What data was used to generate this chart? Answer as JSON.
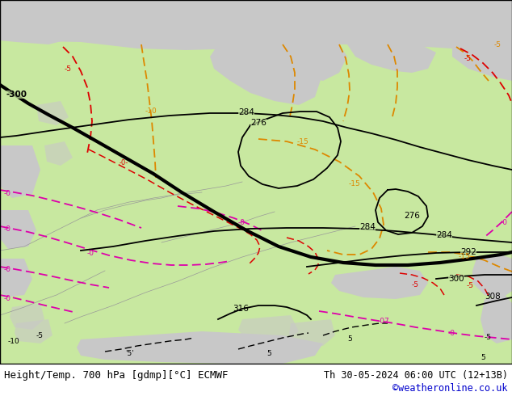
{
  "title_left": "Height/Temp. 700 hPa [gdmp][°C] ECMWF",
  "title_right": "Th 30-05-2024 06:00 UTC (12+13B)",
  "credit": "©weatheronline.co.uk",
  "land_color": "#c8e8a0",
  "sea_color": "#c8c8c8",
  "border_color": "#888888",
  "height_color": "#000000",
  "orange_color": "#dd8800",
  "red_color": "#dd0000",
  "magenta_color": "#dd00aa",
  "footer_color": "#000000",
  "credit_color": "#0000cc",
  "footer_fontsize": 9,
  "label_fontsize": 7.5
}
